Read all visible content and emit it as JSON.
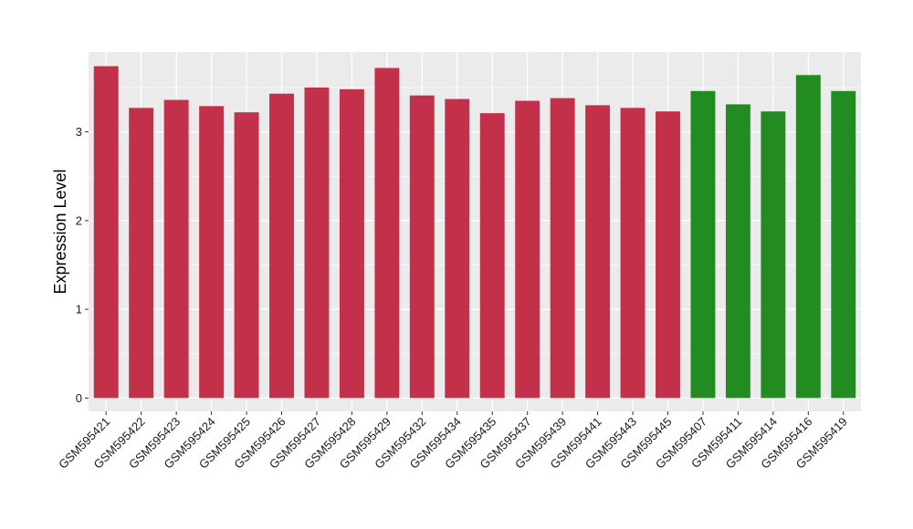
{
  "chart_data": {
    "type": "bar",
    "title": "",
    "xlabel": "",
    "ylabel": "Expression Level",
    "ylim": [
      -0.15,
      3.9
    ],
    "yticks": [
      0,
      1,
      2,
      3
    ],
    "grid": true,
    "legend": "none",
    "colors": {
      "group1": "#C3304A",
      "group2": "#228B22",
      "panel": "#EBEBEB",
      "grid": "#FFFFFF"
    },
    "categories": [
      "GSM595421",
      "GSM595422",
      "GSM595423",
      "GSM595424",
      "GSM595425",
      "GSM595426",
      "GSM595427",
      "GSM595428",
      "GSM595429",
      "GSM595432",
      "GSM595434",
      "GSM595435",
      "GSM595437",
      "GSM595439",
      "GSM595441",
      "GSM595443",
      "GSM595445",
      "GSM595407",
      "GSM595411",
      "GSM595414",
      "GSM595416",
      "GSM595419"
    ],
    "values": [
      3.74,
      3.27,
      3.36,
      3.29,
      3.22,
      3.43,
      3.5,
      3.48,
      3.72,
      3.41,
      3.37,
      3.21,
      3.35,
      3.38,
      3.3,
      3.27,
      3.23,
      3.46,
      3.31,
      3.23,
      3.64,
      3.46
    ],
    "groups": [
      1,
      1,
      1,
      1,
      1,
      1,
      1,
      1,
      1,
      1,
      1,
      1,
      1,
      1,
      1,
      1,
      1,
      2,
      2,
      2,
      2,
      2
    ]
  }
}
